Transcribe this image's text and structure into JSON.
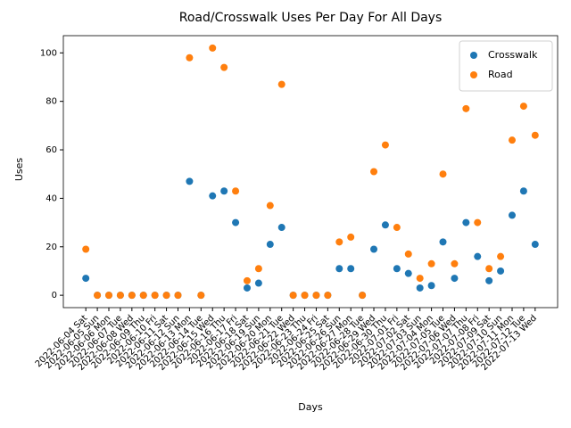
{
  "chart_data": {
    "type": "scatter",
    "title": "Road/Crosswalk Uses Per Day For All Days",
    "x_label": "Days",
    "y_label": "Uses",
    "categories": [
      "2022-06-04 Sat",
      "2022-06-05 Sun",
      "2022-06-06 Mon",
      "2022-06-07 Tue",
      "2022-06-08 Wed",
      "2022-06-09 Thu",
      "2022-06-10 Fri",
      "2022-06-11 Sat",
      "2022-06-12 Sun",
      "2022-06-13 Mon",
      "2022-06-14 Tue",
      "2022-06-15 Wed",
      "2022-06-16 Thu",
      "2022-06-17 Fri",
      "2022-06-18 Sat",
      "2022-06-19 Sun",
      "2022-06-20 Mon",
      "2022-06-21 Tue",
      "2022-06-22 Wed",
      "2022-06-23 Thu",
      "2022-06-24 Fri",
      "2022-06-25 Sat",
      "2022-06-26 Sun",
      "2022-06-27 Mon",
      "2022-06-28 Tue",
      "2022-06-29 Wed",
      "2022-06-30 Thu",
      "2022-07-01 Fri",
      "2022-07-02 Sat",
      "2022-07-03 Sun",
      "2022-07-04 Mon",
      "2022-07-05 Tue",
      "2022-07-06 Wed",
      "2022-07-07 Thu",
      "2022-07-08 Fri",
      "2022-07-09 Sat",
      "2022-07-10 Sun",
      "2022-07-11 Mon",
      "2022-07-12 Tue",
      "2022-07-13 Wed"
    ],
    "series": [
      {
        "name": "Crosswalk",
        "color": "#1f77b4",
        "values": [
          7,
          0,
          0,
          0,
          0,
          0,
          0,
          0,
          0,
          47,
          0,
          41,
          43,
          30,
          3,
          5,
          21,
          28,
          0,
          0,
          0,
          0,
          11,
          11,
          0,
          19,
          29,
          11,
          9,
          3,
          4,
          22,
          7,
          30,
          16,
          6,
          10,
          33,
          43,
          21
        ]
      },
      {
        "name": "Road",
        "color": "#ff7f0e",
        "values": [
          19,
          0,
          0,
          0,
          0,
          0,
          0,
          0,
          0,
          98,
          0,
          102,
          94,
          43,
          6,
          11,
          37,
          87,
          0,
          0,
          0,
          0,
          22,
          24,
          0,
          51,
          62,
          28,
          17,
          7,
          13,
          50,
          13,
          77,
          30,
          11,
          16,
          64,
          78,
          66
        ]
      }
    ],
    "ylim": [
      -5.1,
      107.1
    ],
    "yticks": [
      0,
      20,
      40,
      60,
      80,
      100
    ],
    "grid": false,
    "legend": "upper right"
  }
}
